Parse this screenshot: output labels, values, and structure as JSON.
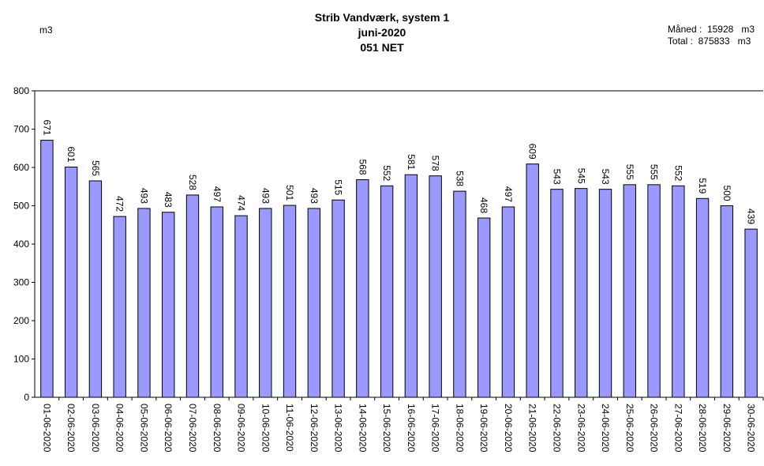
{
  "header": {
    "title_line1": "Strib Vandværk, system 1",
    "title_line2": "juni-2020",
    "title_line3": "051 NET",
    "unit": "m3",
    "month_line": "Måned :  15928   m3",
    "total_line": "Total :  875833   m3"
  },
  "colors": {
    "bar_fill": "#9999ff",
    "bar_stroke": "#000000"
  },
  "chart_data": {
    "type": "bar",
    "ylim": [
      0,
      800
    ],
    "yticks": [
      0,
      100,
      200,
      300,
      400,
      500,
      600,
      700,
      800
    ],
    "grid": false,
    "categories": [
      "01-06-2020",
      "02-06-2020",
      "03-06-2020",
      "04-06-2020",
      "05-06-2020",
      "06-06-2020",
      "07-06-2020",
      "08-06-2020",
      "09-06-2020",
      "10-06-2020",
      "11-06-2020",
      "12-06-2020",
      "13-06-2020",
      "14-06-2020",
      "15-06-2020",
      "16-06-2020",
      "17-06-2020",
      "18-06-2020",
      "19-06-2020",
      "20-06-2020",
      "21-06-2020",
      "22-06-2020",
      "23-06-2020",
      "24-06-2020",
      "25-06-2020",
      "26-06-2020",
      "27-06-2020",
      "28-06-2020",
      "29-06-2020",
      "30-06-2020"
    ],
    "values": [
      671,
      601,
      565,
      472,
      493,
      483,
      528,
      497,
      474,
      493,
      501,
      493,
      515,
      568,
      552,
      581,
      578,
      538,
      468,
      497,
      609,
      543,
      545,
      543,
      555,
      555,
      552,
      519,
      500,
      439
    ]
  }
}
